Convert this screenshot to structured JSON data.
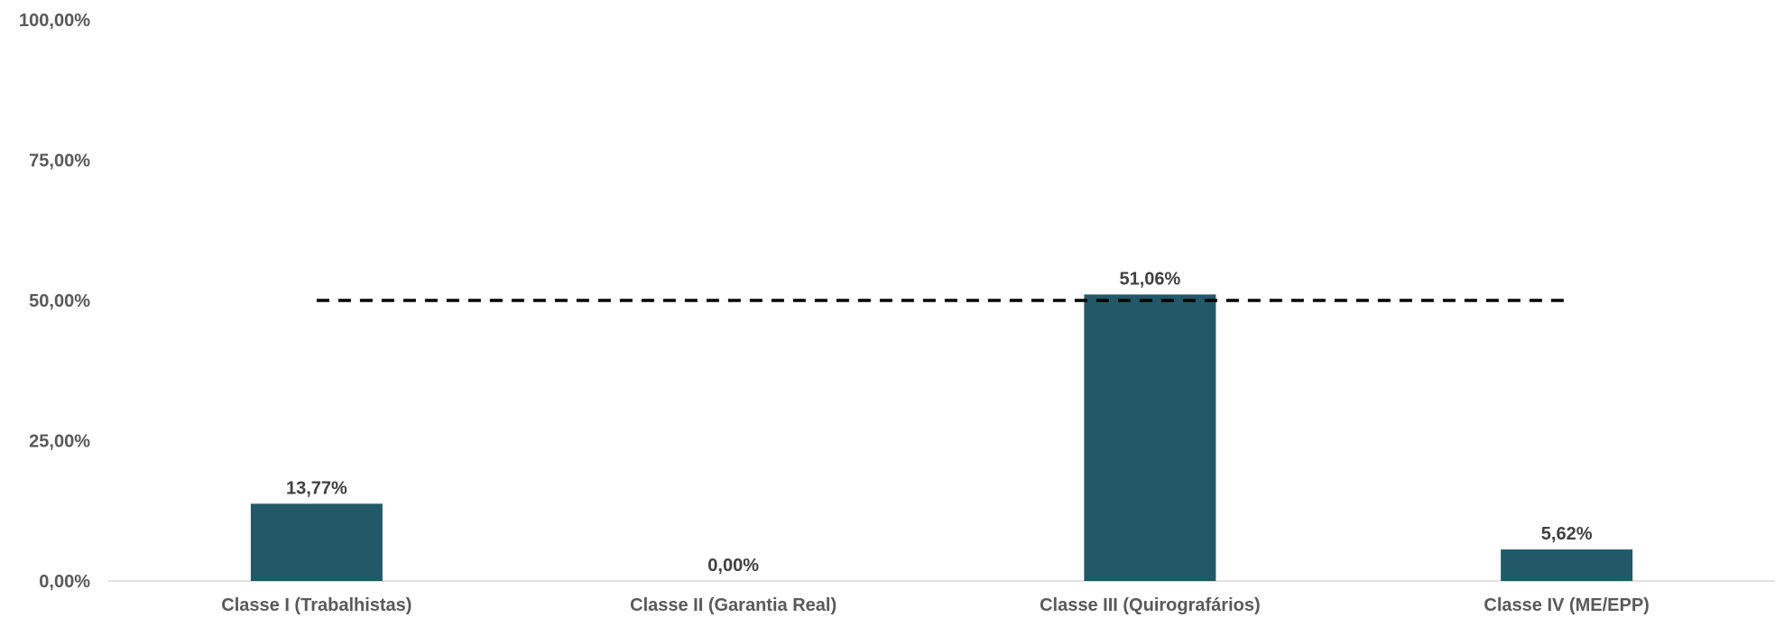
{
  "chart_data": {
    "type": "bar",
    "title": "",
    "xlabel": "",
    "ylabel": "",
    "ylim": [
      0,
      100
    ],
    "categories": [
      "Classe I (Trabalhistas)",
      "Classe II (Garantia Real)",
      "Classe III (Quirografários)",
      "Classe IV (ME/EPP)"
    ],
    "values": [
      13.77,
      0.0,
      51.06,
      5.62
    ],
    "data_labels": [
      "13,77%",
      "0,00%",
      "51,06%",
      "5,62%"
    ],
    "y_ticks": [
      0,
      25,
      50,
      75,
      100
    ],
    "y_tick_labels": [
      "0,00%",
      "25,00%",
      "50,00%",
      "75,00%",
      "100,00%"
    ],
    "reference_line": {
      "value": 50,
      "style": "dashed",
      "color": "#000000"
    },
    "bar_color": "#215968",
    "grid": false,
    "legend": "none"
  }
}
